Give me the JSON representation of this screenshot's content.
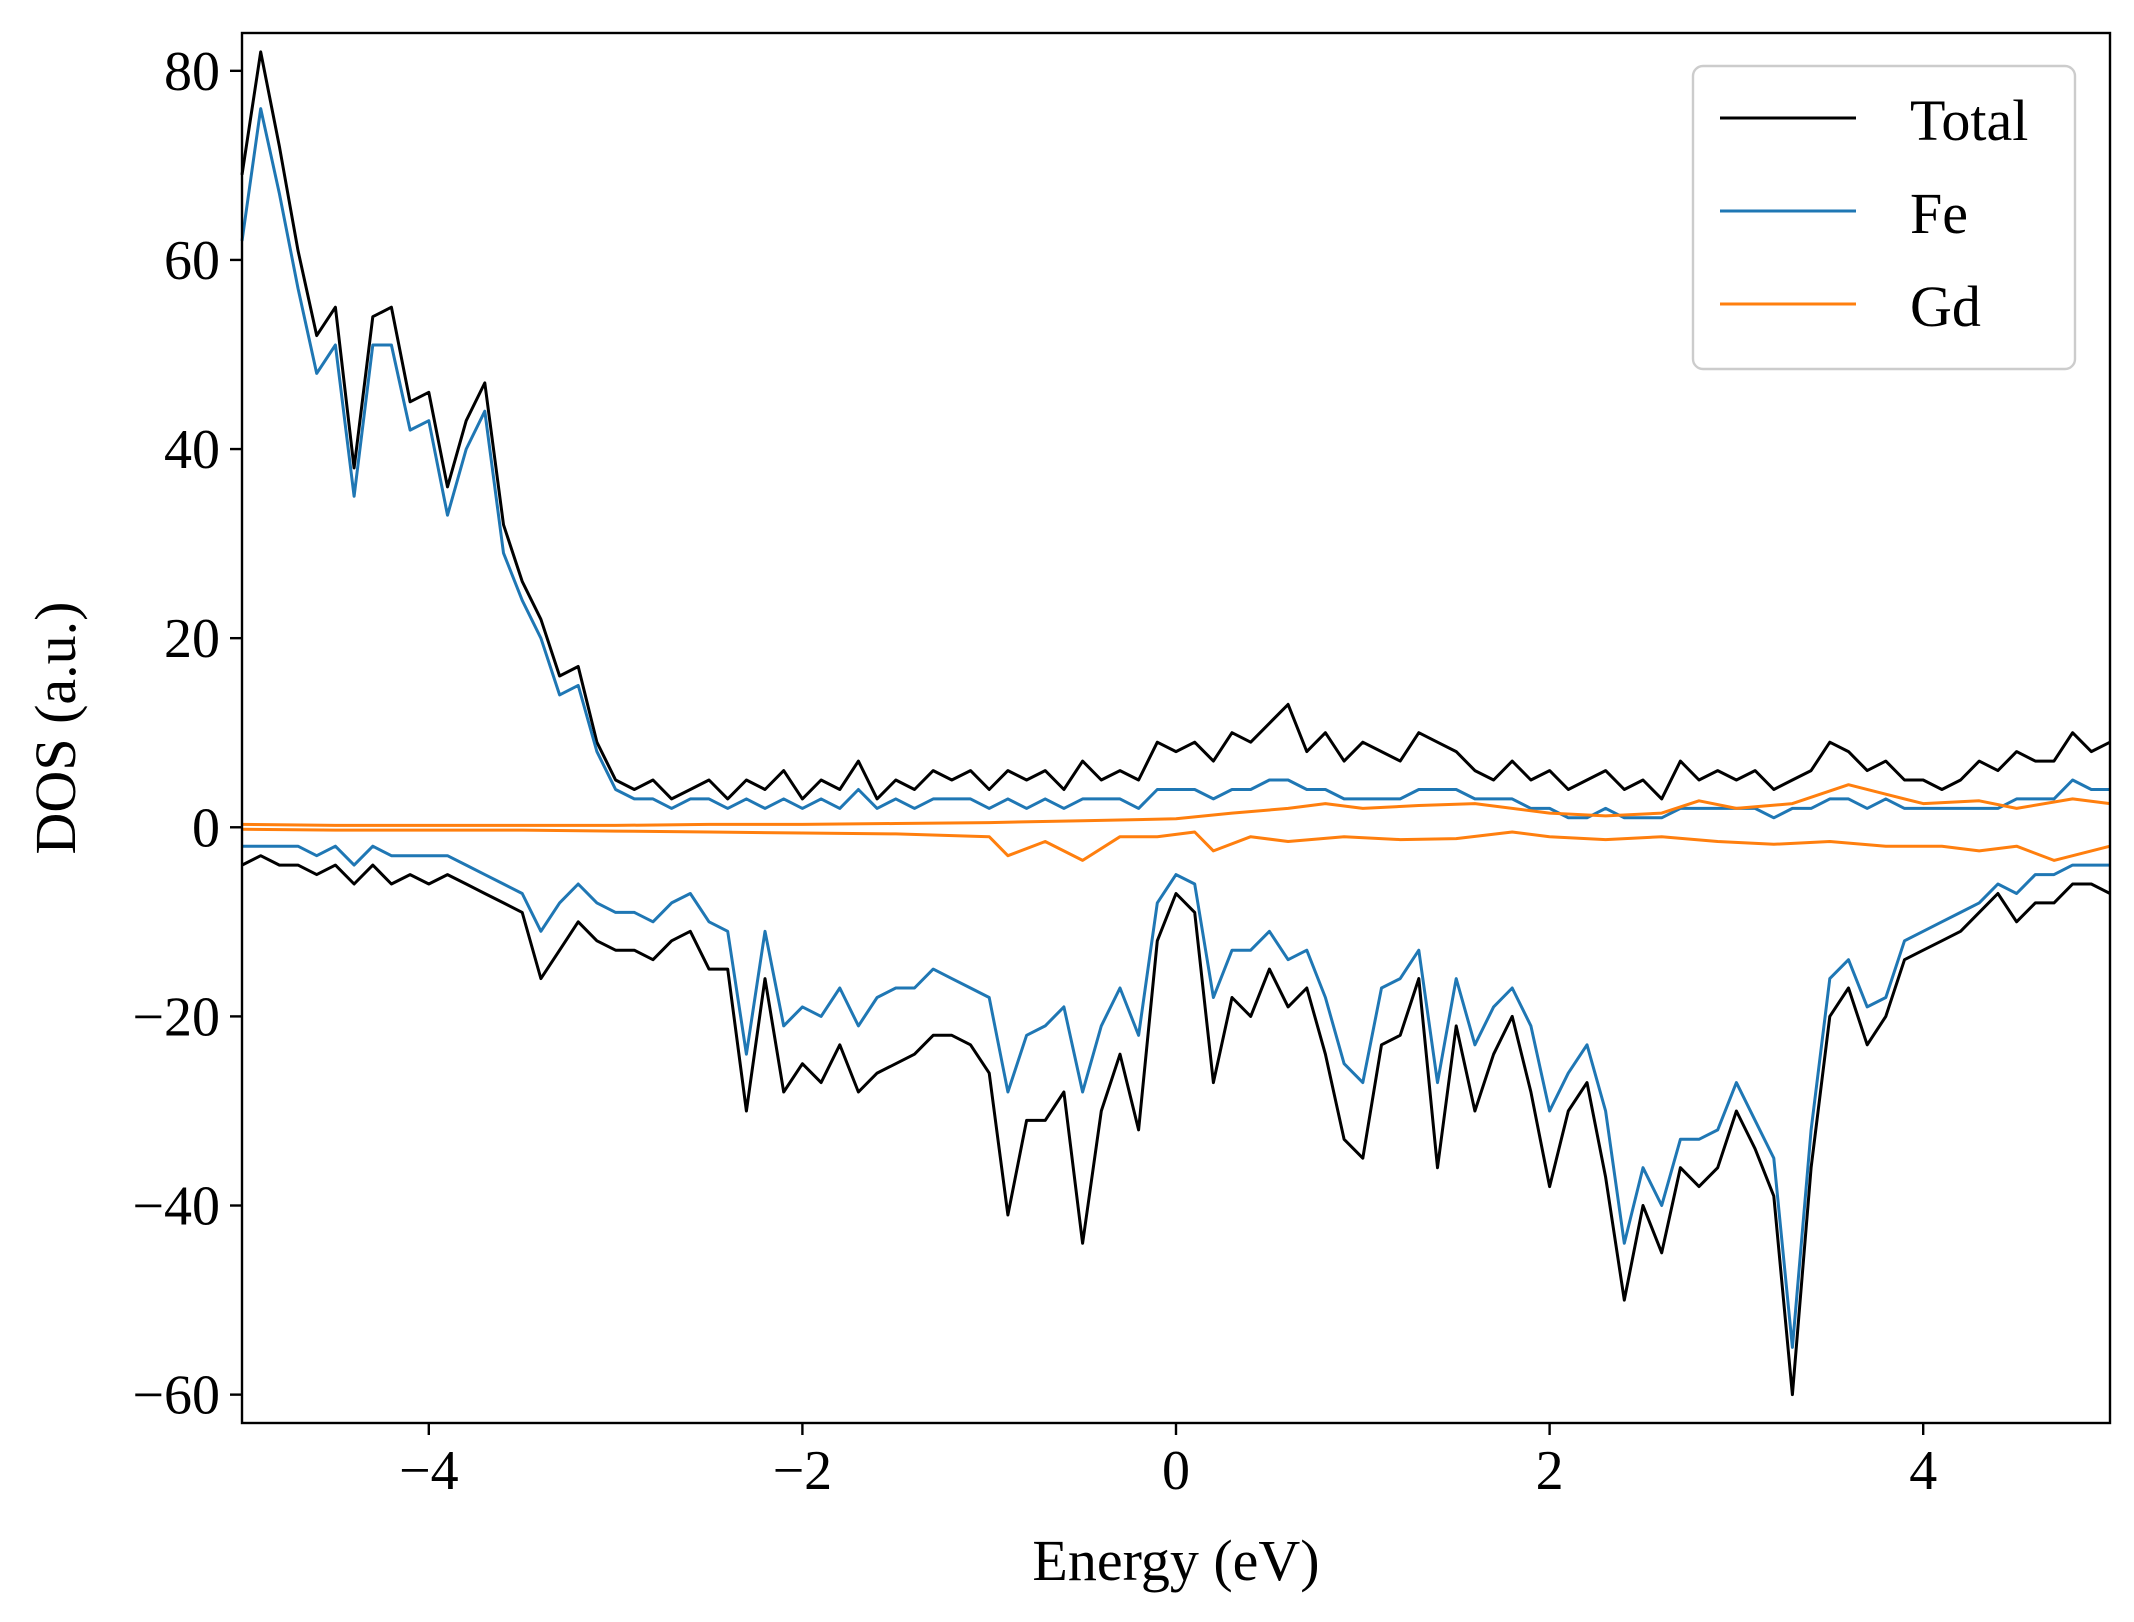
{
  "chart_data": {
    "type": "line",
    "xlabel": "Energy (eV)",
    "ylabel": "DOS (a.u.)",
    "xlim": [
      -5,
      5
    ],
    "ylim": [
      -63,
      84
    ],
    "x_ticks": [
      -4,
      -2,
      0,
      2,
      4
    ],
    "y_ticks": [
      -60,
      -40,
      -20,
      0,
      20,
      40,
      60,
      80
    ],
    "tick_labels_x": [
      "−4",
      "−2",
      "0",
      "2",
      "4"
    ],
    "tick_labels_y": [
      "−60",
      "−40",
      "−20",
      "0",
      "20",
      "40",
      "60",
      "80"
    ],
    "grid": false,
    "legend_position": "top-right",
    "legend": [
      "Total",
      "Fe",
      "Gd"
    ],
    "series": [
      {
        "name": "Total",
        "channel": "spin-up",
        "color": "#000000",
        "x": [
          -5.0,
          -4.9,
          -4.8,
          -4.7,
          -4.6,
          -4.5,
          -4.4,
          -4.3,
          -4.2,
          -4.1,
          -4.0,
          -3.9,
          -3.8,
          -3.7,
          -3.6,
          -3.5,
          -3.4,
          -3.3,
          -3.2,
          -3.1,
          -3.0,
          -2.9,
          -2.8,
          -2.7,
          -2.6,
          -2.5,
          -2.4,
          -2.3,
          -2.2,
          -2.1,
          -2.0,
          -1.9,
          -1.8,
          -1.7,
          -1.6,
          -1.5,
          -1.4,
          -1.3,
          -1.2,
          -1.1,
          -1.0,
          -0.9,
          -0.8,
          -0.7,
          -0.6,
          -0.5,
          -0.4,
          -0.3,
          -0.2,
          -0.1,
          0.0,
          0.1,
          0.2,
          0.3,
          0.4,
          0.5,
          0.6,
          0.7,
          0.8,
          0.9,
          1.0,
          1.1,
          1.2,
          1.3,
          1.4,
          1.5,
          1.6,
          1.7,
          1.8,
          1.9,
          2.0,
          2.1,
          2.2,
          2.3,
          2.4,
          2.5,
          2.6,
          2.7,
          2.8,
          2.9,
          3.0,
          3.1,
          3.2,
          3.3,
          3.4,
          3.5,
          3.6,
          3.7,
          3.8,
          3.9,
          4.0,
          4.1,
          4.2,
          4.3,
          4.4,
          4.5,
          4.6,
          4.7,
          4.8,
          4.9,
          5.0
        ],
        "y": [
          69,
          82,
          72,
          61,
          52,
          55,
          38,
          54,
          55,
          45,
          46,
          36,
          43,
          47,
          32,
          26,
          22,
          16,
          17,
          9,
          5,
          4,
          5,
          3,
          4,
          5,
          3,
          5,
          4,
          6,
          3,
          5,
          4,
          7,
          3,
          5,
          4,
          6,
          5,
          6,
          4,
          6,
          5,
          6,
          4,
          7,
          5,
          6,
          5,
          9,
          8,
          9,
          7,
          10,
          9,
          11,
          13,
          8,
          10,
          7,
          9,
          8,
          7,
          10,
          9,
          8,
          6,
          5,
          7,
          5,
          6,
          4,
          5,
          6,
          4,
          5,
          3,
          7,
          5,
          6,
          5,
          6,
          4,
          5,
          6,
          9,
          8,
          6,
          7,
          5,
          5,
          4,
          5,
          7,
          6,
          8,
          7,
          7,
          10,
          8,
          9
        ]
      },
      {
        "name": "Fe",
        "channel": "spin-up",
        "color": "#1f77b4",
        "x": [
          -5.0,
          -4.9,
          -4.8,
          -4.7,
          -4.6,
          -4.5,
          -4.4,
          -4.3,
          -4.2,
          -4.1,
          -4.0,
          -3.9,
          -3.8,
          -3.7,
          -3.6,
          -3.5,
          -3.4,
          -3.3,
          -3.2,
          -3.1,
          -3.0,
          -2.9,
          -2.8,
          -2.7,
          -2.6,
          -2.5,
          -2.4,
          -2.3,
          -2.2,
          -2.1,
          -2.0,
          -1.9,
          -1.8,
          -1.7,
          -1.6,
          -1.5,
          -1.4,
          -1.3,
          -1.2,
          -1.1,
          -1.0,
          -0.9,
          -0.8,
          -0.7,
          -0.6,
          -0.5,
          -0.4,
          -0.3,
          -0.2,
          -0.1,
          0.0,
          0.1,
          0.2,
          0.3,
          0.4,
          0.5,
          0.6,
          0.7,
          0.8,
          0.9,
          1.0,
          1.1,
          1.2,
          1.3,
          1.4,
          1.5,
          1.6,
          1.7,
          1.8,
          1.9,
          2.0,
          2.1,
          2.2,
          2.3,
          2.4,
          2.5,
          2.6,
          2.7,
          2.8,
          2.9,
          3.0,
          3.1,
          3.2,
          3.3,
          3.4,
          3.5,
          3.6,
          3.7,
          3.8,
          3.9,
          4.0,
          4.1,
          4.2,
          4.3,
          4.4,
          4.5,
          4.6,
          4.7,
          4.8,
          4.9,
          5.0
        ],
        "y": [
          62,
          76,
          67,
          57,
          48,
          51,
          35,
          51,
          51,
          42,
          43,
          33,
          40,
          44,
          29,
          24,
          20,
          14,
          15,
          8,
          4,
          3,
          3,
          2,
          3,
          3,
          2,
          3,
          2,
          3,
          2,
          3,
          2,
          4,
          2,
          3,
          2,
          3,
          3,
          3,
          2,
          3,
          2,
          3,
          2,
          3,
          3,
          3,
          2,
          4,
          4,
          4,
          3,
          4,
          4,
          5,
          5,
          4,
          4,
          3,
          3,
          3,
          3,
          4,
          4,
          4,
          3,
          3,
          3,
          2,
          2,
          1,
          1,
          2,
          1,
          1,
          1,
          2,
          2,
          2,
          2,
          2,
          1,
          2,
          2,
          3,
          3,
          2,
          3,
          2,
          2,
          2,
          2,
          2,
          2,
          3,
          3,
          3,
          5,
          4,
          4
        ]
      },
      {
        "name": "Gd",
        "channel": "spin-up",
        "color": "#ff7f0e",
        "x": [
          -5.0,
          -4.5,
          -4.0,
          -3.5,
          -3.0,
          -2.5,
          -2.0,
          -1.5,
          -1.0,
          -0.5,
          0.0,
          0.3,
          0.6,
          0.8,
          1.0,
          1.3,
          1.6,
          2.0,
          2.3,
          2.6,
          2.8,
          3.0,
          3.3,
          3.6,
          3.8,
          4.0,
          4.3,
          4.5,
          4.8,
          5.0
        ],
        "y": [
          0.3,
          0.2,
          0.2,
          0.2,
          0.2,
          0.3,
          0.3,
          0.4,
          0.5,
          0.7,
          0.9,
          1.5,
          2.0,
          2.5,
          2.0,
          2.3,
          2.5,
          1.5,
          1.2,
          1.5,
          2.8,
          2.0,
          2.5,
          4.5,
          3.5,
          2.5,
          2.8,
          2.0,
          3.0,
          2.5
        ]
      },
      {
        "name": "Total",
        "channel": "spin-down",
        "color": "#000000",
        "x": [
          -5.0,
          -4.9,
          -4.8,
          -4.7,
          -4.6,
          -4.5,
          -4.4,
          -4.3,
          -4.2,
          -4.1,
          -4.0,
          -3.9,
          -3.8,
          -3.7,
          -3.6,
          -3.5,
          -3.4,
          -3.3,
          -3.2,
          -3.1,
          -3.0,
          -2.9,
          -2.8,
          -2.7,
          -2.6,
          -2.5,
          -2.4,
          -2.3,
          -2.2,
          -2.1,
          -2.0,
          -1.9,
          -1.8,
          -1.7,
          -1.6,
          -1.5,
          -1.4,
          -1.3,
          -1.2,
          -1.1,
          -1.0,
          -0.9,
          -0.8,
          -0.7,
          -0.6,
          -0.5,
          -0.4,
          -0.3,
          -0.2,
          -0.1,
          0.0,
          0.1,
          0.2,
          0.3,
          0.4,
          0.5,
          0.6,
          0.7,
          0.8,
          0.9,
          1.0,
          1.1,
          1.2,
          1.3,
          1.4,
          1.5,
          1.6,
          1.7,
          1.8,
          1.9,
          2.0,
          2.1,
          2.2,
          2.3,
          2.4,
          2.5,
          2.6,
          2.7,
          2.8,
          2.9,
          3.0,
          3.1,
          3.2,
          3.3,
          3.4,
          3.5,
          3.6,
          3.7,
          3.8,
          3.9,
          4.0,
          4.1,
          4.2,
          4.3,
          4.4,
          4.5,
          4.6,
          4.7,
          4.8,
          4.9,
          5.0
        ],
        "y": [
          -4,
          -3,
          -4,
          -4,
          -5,
          -4,
          -6,
          -4,
          -6,
          -5,
          -6,
          -5,
          -6,
          -7,
          -8,
          -9,
          -16,
          -13,
          -10,
          -12,
          -13,
          -13,
          -14,
          -12,
          -11,
          -15,
          -15,
          -30,
          -16,
          -28,
          -25,
          -27,
          -23,
          -28,
          -26,
          -25,
          -24,
          -22,
          -22,
          -23,
          -26,
          -41,
          -31,
          -31,
          -28,
          -44,
          -30,
          -24,
          -32,
          -12,
          -7,
          -9,
          -27,
          -18,
          -20,
          -15,
          -19,
          -17,
          -24,
          -33,
          -35,
          -23,
          -22,
          -16,
          -36,
          -21,
          -30,
          -24,
          -20,
          -28,
          -38,
          -30,
          -27,
          -37,
          -50,
          -40,
          -45,
          -36,
          -38,
          -36,
          -30,
          -34,
          -39,
          -60,
          -36,
          -20,
          -17,
          -23,
          -20,
          -14,
          -13,
          -12,
          -11,
          -9,
          -7,
          -10,
          -8,
          -8,
          -6,
          -6,
          -7
        ]
      },
      {
        "name": "Fe",
        "channel": "spin-down",
        "color": "#1f77b4",
        "x": [
          -5.0,
          -4.9,
          -4.8,
          -4.7,
          -4.6,
          -4.5,
          -4.4,
          -4.3,
          -4.2,
          -4.1,
          -4.0,
          -3.9,
          -3.8,
          -3.7,
          -3.6,
          -3.5,
          -3.4,
          -3.3,
          -3.2,
          -3.1,
          -3.0,
          -2.9,
          -2.8,
          -2.7,
          -2.6,
          -2.5,
          -2.4,
          -2.3,
          -2.2,
          -2.1,
          -2.0,
          -1.9,
          -1.8,
          -1.7,
          -1.6,
          -1.5,
          -1.4,
          -1.3,
          -1.2,
          -1.1,
          -1.0,
          -0.9,
          -0.8,
          -0.7,
          -0.6,
          -0.5,
          -0.4,
          -0.3,
          -0.2,
          -0.1,
          0.0,
          0.1,
          0.2,
          0.3,
          0.4,
          0.5,
          0.6,
          0.7,
          0.8,
          0.9,
          1.0,
          1.1,
          1.2,
          1.3,
          1.4,
          1.5,
          1.6,
          1.7,
          1.8,
          1.9,
          2.0,
          2.1,
          2.2,
          2.3,
          2.4,
          2.5,
          2.6,
          2.7,
          2.8,
          2.9,
          3.0,
          3.1,
          3.2,
          3.3,
          3.4,
          3.5,
          3.6,
          3.7,
          3.8,
          3.9,
          4.0,
          4.1,
          4.2,
          4.3,
          4.4,
          4.5,
          4.6,
          4.7,
          4.8,
          4.9,
          5.0
        ],
        "y": [
          -2,
          -2,
          -2,
          -2,
          -3,
          -2,
          -4,
          -2,
          -3,
          -3,
          -3,
          -3,
          -4,
          -5,
          -6,
          -7,
          -11,
          -8,
          -6,
          -8,
          -9,
          -9,
          -10,
          -8,
          -7,
          -10,
          -11,
          -24,
          -11,
          -21,
          -19,
          -20,
          -17,
          -21,
          -18,
          -17,
          -17,
          -15,
          -16,
          -17,
          -18,
          -28,
          -22,
          -21,
          -19,
          -28,
          -21,
          -17,
          -22,
          -8,
          -5,
          -6,
          -18,
          -13,
          -13,
          -11,
          -14,
          -13,
          -18,
          -25,
          -27,
          -17,
          -16,
          -13,
          -27,
          -16,
          -23,
          -19,
          -17,
          -21,
          -30,
          -26,
          -23,
          -30,
          -44,
          -36,
          -40,
          -33,
          -33,
          -32,
          -27,
          -31,
          -35,
          -55,
          -32,
          -16,
          -14,
          -19,
          -18,
          -12,
          -11,
          -10,
          -9,
          -8,
          -6,
          -7,
          -5,
          -5,
          -4,
          -4,
          -4
        ]
      },
      {
        "name": "Gd",
        "channel": "spin-down",
        "color": "#ff7f0e",
        "x": [
          -5.0,
          -4.5,
          -4.0,
          -3.5,
          -3.0,
          -2.5,
          -2.0,
          -1.5,
          -1.0,
          -0.9,
          -0.7,
          -0.5,
          -0.3,
          -0.1,
          0.1,
          0.2,
          0.4,
          0.6,
          0.9,
          1.2,
          1.5,
          1.8,
          2.0,
          2.3,
          2.6,
          2.9,
          3.2,
          3.5,
          3.8,
          4.1,
          4.3,
          4.5,
          4.7,
          5.0
        ],
        "y": [
          -0.2,
          -0.3,
          -0.3,
          -0.3,
          -0.4,
          -0.5,
          -0.6,
          -0.7,
          -1.0,
          -3.0,
          -1.5,
          -3.5,
          -1.0,
          -1.0,
          -0.5,
          -2.5,
          -1.0,
          -1.5,
          -1.0,
          -1.3,
          -1.2,
          -0.5,
          -1.0,
          -1.3,
          -1.0,
          -1.5,
          -1.8,
          -1.5,
          -2.0,
          -2.0,
          -2.5,
          -2.0,
          -3.5,
          -2.0
        ]
      }
    ]
  }
}
